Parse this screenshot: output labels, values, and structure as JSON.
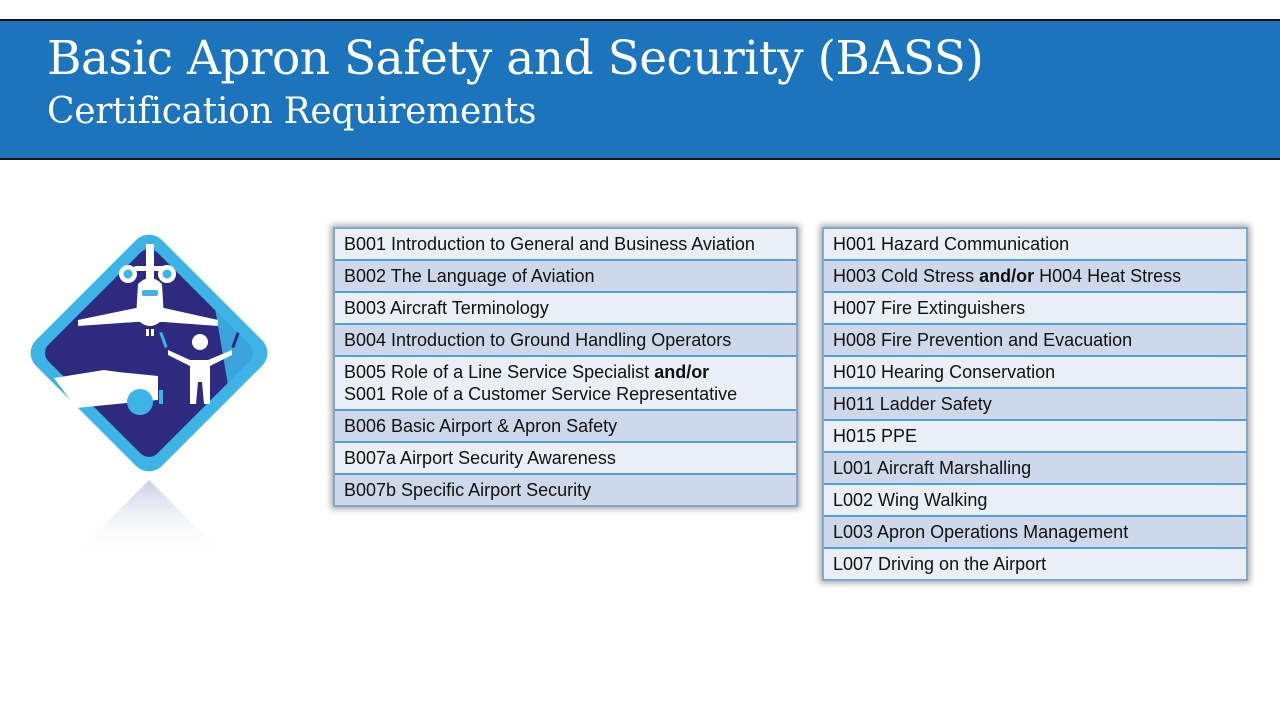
{
  "header": {
    "title": "Basic Apron Safety and Security (BASS)",
    "subtitle": "Certification Requirements",
    "background_color": "#1c75bc"
  },
  "logo": {
    "icon": "bass-badge-aircraft-marshaller-tug",
    "colors": {
      "outer": "#3db3e6",
      "inner": "#2e2a7f"
    }
  },
  "tables": {
    "basic": [
      {
        "parts": [
          {
            "text": "B001 Introduction to General and Business Aviation"
          }
        ]
      },
      {
        "parts": [
          {
            "text": "B002 The Language of Aviation"
          }
        ]
      },
      {
        "parts": [
          {
            "text": "B003 Aircraft Terminology"
          }
        ]
      },
      {
        "parts": [
          {
            "text": "B004 Introduction to Ground Handling Operators"
          }
        ]
      },
      {
        "parts": [
          {
            "text": "B005 Role of a Line Service Specialist "
          },
          {
            "text": "and/or",
            "bold": true
          },
          {
            "text": "S001 Role of a Customer Service Representative",
            "newline": true
          }
        ]
      },
      {
        "parts": [
          {
            "text": "B006 Basic Airport & Apron Safety"
          }
        ]
      },
      {
        "parts": [
          {
            "text": "B007a Airport Security Awareness"
          }
        ]
      },
      {
        "parts": [
          {
            "text": "B007b Specific Airport Security"
          }
        ]
      }
    ],
    "hazard": [
      {
        "parts": [
          {
            "text": "H001 Hazard Communication"
          }
        ]
      },
      {
        "parts": [
          {
            "text": "H003 Cold Stress "
          },
          {
            "text": "and/or",
            "bold": true
          },
          {
            "text": " H004 Heat Stress"
          }
        ]
      },
      {
        "parts": [
          {
            "text": "H007 Fire Extinguishers"
          }
        ]
      },
      {
        "parts": [
          {
            "text": "H008 Fire Prevention and Evacuation"
          }
        ]
      },
      {
        "parts": [
          {
            "text": "H010 Hearing Conservation"
          }
        ]
      },
      {
        "parts": [
          {
            "text": "H011 Ladder Safety"
          }
        ]
      },
      {
        "parts": [
          {
            "text": "H015 PPE"
          }
        ]
      },
      {
        "parts": [
          {
            "text": "L001 Aircraft Marshalling"
          }
        ]
      },
      {
        "parts": [
          {
            "text": "L002 Wing Walking"
          }
        ]
      },
      {
        "parts": [
          {
            "text": "L003 Apron Operations Management"
          }
        ]
      },
      {
        "parts": [
          {
            "text": "L007 Driving on the Airport"
          }
        ]
      }
    ]
  }
}
